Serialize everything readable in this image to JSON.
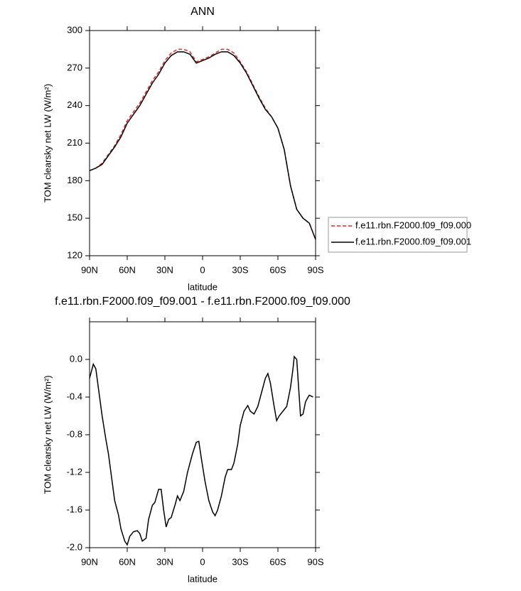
{
  "chart_data": [
    {
      "type": "line",
      "title": "ANN",
      "xlabel": "latitude",
      "ylabel": "TOM clearsky net LW (W/m²)",
      "x": [
        90,
        85,
        80,
        75,
        70,
        65,
        60,
        55,
        50,
        45,
        40,
        35,
        30,
        25,
        20,
        15,
        10,
        5,
        0,
        -5,
        -10,
        -15,
        -20,
        -25,
        -30,
        -35,
        -40,
        -45,
        -50,
        -55,
        -60,
        -65,
        -70,
        -75,
        -80,
        -85,
        -90
      ],
      "series": [
        {
          "name": "f.e11.rbn.F2000.f09_f09.000",
          "color": "#e0292a",
          "dashed": true,
          "values": [
            188,
            190,
            194,
            201,
            208,
            217,
            228,
            235,
            242,
            251,
            260,
            267,
            276,
            282,
            285,
            285,
            283,
            275,
            277,
            279,
            282,
            285,
            285,
            282,
            275,
            267,
            257,
            247,
            238,
            231,
            222,
            205,
            176,
            157,
            150,
            146,
            133
          ]
        },
        {
          "name": "f.e11.rbn.F2000.f09_f09.001",
          "color": "#000000",
          "dashed": false,
          "values": [
            188,
            190,
            193,
            200,
            207,
            215,
            226,
            233,
            240,
            249,
            258,
            265,
            274,
            280,
            283,
            283,
            281,
            274,
            276,
            278,
            281,
            283,
            283,
            280,
            274,
            266,
            256,
            246,
            237,
            231,
            222,
            205,
            176,
            157,
            150,
            146,
            133
          ]
        }
      ],
      "xlim": [
        90,
        -90
      ],
      "xticks": [
        {
          "value": 90,
          "label": "90N"
        },
        {
          "value": 60,
          "label": "60N"
        },
        {
          "value": 30,
          "label": "30N"
        },
        0,
        {
          "value": -30,
          "label": "30S"
        },
        {
          "value": -60,
          "label": "60S"
        },
        {
          "value": -90,
          "label": "90S"
        }
      ],
      "ylim": [
        120,
        300
      ],
      "yticks": [
        120,
        150,
        180,
        210,
        240,
        270,
        300
      ],
      "legend": "right"
    },
    {
      "type": "line",
      "title": "f.e11.rbn.F2000.f09_f09.001 - f.e11.rbn.F2000.f09_f09.000",
      "xlabel": "latitude",
      "ylabel": "TOM clearsky net LW (W/m²)",
      "x": [
        90,
        87,
        85,
        82,
        80,
        77,
        75,
        72,
        70,
        67,
        65,
        62,
        60,
        58,
        55,
        52,
        50,
        48,
        45,
        43,
        40,
        38,
        35,
        33,
        31,
        29,
        27,
        25,
        22,
        20,
        18,
        15,
        12,
        8,
        5,
        3,
        1,
        -2,
        -5,
        -8,
        -10,
        -12,
        -15,
        -18,
        -20,
        -23,
        -25,
        -28,
        -30,
        -33,
        -36,
        -38,
        -41,
        -44,
        -47,
        -50,
        -52,
        -54,
        -57,
        -59,
        -61,
        -64,
        -67,
        -70,
        -72,
        -73,
        -75,
        -77,
        -78,
        -80,
        -82,
        -84,
        -85,
        -88
      ],
      "values": [
        -0.2,
        -0.05,
        -0.1,
        -0.4,
        -0.6,
        -0.85,
        -1.0,
        -1.3,
        -1.5,
        -1.65,
        -1.8,
        -1.93,
        -1.97,
        -1.88,
        -1.83,
        -1.82,
        -1.85,
        -1.93,
        -1.9,
        -1.7,
        -1.55,
        -1.52,
        -1.38,
        -1.38,
        -1.6,
        -1.78,
        -1.7,
        -1.68,
        -1.55,
        -1.45,
        -1.5,
        -1.4,
        -1.2,
        -1.0,
        -0.88,
        -0.87,
        -1.05,
        -1.3,
        -1.5,
        -1.62,
        -1.66,
        -1.6,
        -1.45,
        -1.25,
        -1.17,
        -1.17,
        -1.1,
        -0.9,
        -0.7,
        -0.55,
        -0.49,
        -0.55,
        -0.58,
        -0.5,
        -0.35,
        -0.2,
        -0.15,
        -0.25,
        -0.5,
        -0.65,
        -0.6,
        -0.55,
        -0.5,
        -0.3,
        -0.1,
        0.03,
        0.0,
        -0.4,
        -0.6,
        -0.58,
        -0.45,
        -0.4,
        -0.38,
        -0.4
      ],
      "color": "#000000",
      "xlim": [
        90,
        -90
      ],
      "xticks": [
        {
          "value": 90,
          "label": "90N"
        },
        {
          "value": 60,
          "label": "60N"
        },
        {
          "value": 30,
          "label": "30N"
        },
        0,
        {
          "value": -30,
          "label": "30S"
        },
        {
          "value": -60,
          "label": "60S"
        },
        {
          "value": -90,
          "label": "90S"
        }
      ],
      "ylim": [
        -2.0,
        0.4
      ],
      "yticks": [
        {
          "value": -2.0,
          "label": "-2.0"
        },
        -1.6,
        -1.2,
        -0.8,
        -0.4,
        {
          "value": 0,
          "label": "0.0"
        }
      ]
    }
  ]
}
